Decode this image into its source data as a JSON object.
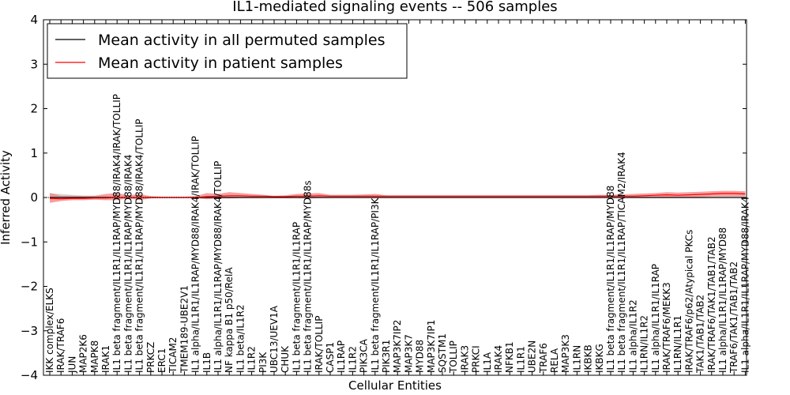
{
  "chart_data": {
    "type": "line",
    "title": "IL1-mediated signaling events -- 506 samples",
    "xlabel": "Cellular Entities",
    "ylabel": "Inferred Activity",
    "ylim": [
      -4,
      4
    ],
    "yticks": [
      "−4",
      "−3",
      "−2",
      "−1",
      "0",
      "1",
      "2",
      "3",
      "4"
    ],
    "grid": false,
    "legend_position": "top-left",
    "colors": {
      "permuted": "#000000",
      "patient": "#ff0000",
      "band": "#f08080",
      "band_gray": "#c8c8c8"
    },
    "categories": [
      "IKK complex/ELKS",
      "IRAK/TRAF6",
      "JUN",
      "MAP2K6",
      "MAPK8",
      "IRAK1",
      "IL1 beta fragment/IL1R1/IL1RAP/MYD88/IRAK4/IRAK/TOLLIP",
      "IL1 beta fragment/IL1R1/IL1RAP/MYD88/IRAK4",
      "IL1 beta fragment/IL1R1/IL1RAP/MYD88/IRAK4/TOLLIP",
      "PRKCZ",
      "ERC1",
      "TICAM2",
      "TMEM189-UBE2V1",
      "IL1 alpha/IL1R1/IL1RAP/MYD88/IRAK4/IRAK/TOLLIP",
      "IL1B",
      "IL1 alpha/IL1R1/IL1RAP/MYD88/IRAK4/TOLLIP",
      "NF kappa B1 p50/RelA",
      "IL1 beta/IL1R2",
      "IL1R2",
      "PI3K",
      "UBC13/UEV1A",
      "CHUK",
      "IL1 beta fragment/IL1R1/IL1RAP",
      "IL1 beta fragment/IL1R1/IL1RAP/MYD88s",
      "IRAK/TOLLIP",
      "CASP1",
      "IL1RAP",
      "IL1R2",
      "PIK3CA",
      "IL1 beta fragment/IL1R1/IL1RAP/PI3K",
      "PIK3R1",
      "MAP3K7IP2",
      "MAP3K7",
      "MYD88",
      "MAP3K7IP1",
      "SQSTM1",
      "TOLLIP",
      "IRAK3",
      "PRKCI",
      "IL1A",
      "IRAK4",
      "NFKB1",
      "IL1R1",
      "UBE2N",
      "TRAF6",
      "RELA",
      "MAP3K3",
      "IL1RN",
      "IKBKB",
      "IKBKG",
      "IL1 beta fragment/IL1R1/IL1RAP/MYD88",
      "IL1 beta fragment/IL1R1/IL1RAP/TICAM2/IRAK4",
      "IL1 alpha/IL1R2",
      "IL1RN/IL1R2",
      "IL1 alpha/IL1R1/IL1RAP",
      "IRAK/TRAF6/MEKK3",
      "IL1RN/IL1R1",
      "IRAK/TRAF6/p62/Atypical PKCs",
      "TAK1/TAB1/TAB2",
      "IRAK/TRAF6/TAK1/TAB1/TAB2",
      "IL1 alpha/IL1R1/IL1RAP/MYD88",
      "TRAF6/TAK1/TAB1/TAB2",
      "IL1 alpha/IL1R1/IL1RAP/MYD88/IRAK4"
    ],
    "series": [
      {
        "name": "Mean activity in all permuted samples",
        "values": [
          0.0,
          0.0,
          0.0,
          0.0,
          0.0,
          0.0,
          0.0,
          0.0,
          0.0,
          0.0,
          0.0,
          0.0,
          0.0,
          0.0,
          0.0,
          0.0,
          0.0,
          0.0,
          0.0,
          0.0,
          0.0,
          0.0,
          0.0,
          0.0,
          0.0,
          0.0,
          0.0,
          0.0,
          0.0,
          0.0,
          0.0,
          0.0,
          0.0,
          0.0,
          0.0,
          0.0,
          0.0,
          0.0,
          0.0,
          0.0,
          0.0,
          0.0,
          0.0,
          0.0,
          0.0,
          0.0,
          0.0,
          0.0,
          0.0,
          0.0,
          0.0,
          0.0,
          0.0,
          0.0,
          0.0,
          0.0,
          0.0,
          0.0,
          0.0,
          0.0,
          0.0,
          0.0,
          0.0
        ]
      },
      {
        "name": "Mean activity in patient samples",
        "values": [
          -0.02,
          -0.03,
          -0.02,
          -0.02,
          -0.01,
          -0.01,
          0.0,
          0.0,
          0.0,
          0.0,
          0.0,
          0.0,
          0.0,
          0.0,
          0.02,
          0.03,
          0.04,
          0.04,
          0.03,
          0.03,
          0.02,
          0.02,
          0.03,
          0.03,
          0.04,
          0.03,
          0.03,
          0.03,
          0.03,
          0.03,
          0.03,
          0.03,
          0.03,
          0.03,
          0.03,
          0.03,
          0.03,
          0.03,
          0.03,
          0.03,
          0.03,
          0.03,
          0.03,
          0.03,
          0.03,
          0.03,
          0.03,
          0.03,
          0.03,
          0.03,
          0.03,
          0.03,
          0.03,
          0.04,
          0.05,
          0.06,
          0.05,
          0.06,
          0.07,
          0.08,
          0.09,
          0.09,
          0.08
        ]
      }
    ],
    "patient_band": {
      "upper": [
        0.1,
        0.04,
        0.04,
        0.03,
        0.04,
        0.08,
        0.1,
        0.05,
        0.08,
        0.03,
        0.02,
        0.02,
        0.02,
        0.03,
        0.1,
        0.08,
        0.12,
        0.1,
        0.08,
        0.06,
        0.04,
        0.05,
        0.08,
        0.09,
        0.1,
        0.06,
        0.06,
        0.06,
        0.07,
        0.08,
        0.05,
        0.05,
        0.05,
        0.05,
        0.05,
        0.05,
        0.05,
        0.05,
        0.05,
        0.05,
        0.05,
        0.05,
        0.05,
        0.05,
        0.05,
        0.05,
        0.05,
        0.05,
        0.05,
        0.06,
        0.06,
        0.07,
        0.08,
        0.09,
        0.1,
        0.12,
        0.11,
        0.12,
        0.13,
        0.14,
        0.15,
        0.15,
        0.14
      ],
      "lower": [
        -0.12,
        -0.08,
        -0.06,
        -0.06,
        -0.05,
        -0.06,
        -0.06,
        -0.02,
        -0.06,
        -0.02,
        -0.01,
        -0.01,
        -0.01,
        -0.01,
        -0.04,
        -0.02,
        -0.02,
        -0.01,
        -0.01,
        -0.01,
        0.0,
        -0.01,
        -0.01,
        -0.02,
        -0.01,
        0.0,
        0.0,
        0.0,
        0.0,
        -0.01,
        0.0,
        0.0,
        0.0,
        0.0,
        0.0,
        0.0,
        0.0,
        0.0,
        0.0,
        0.0,
        0.0,
        0.0,
        0.0,
        0.0,
        0.0,
        0.0,
        0.0,
        0.0,
        0.0,
        0.0,
        0.0,
        -0.01,
        0.0,
        0.0,
        0.0,
        0.0,
        0.0,
        0.0,
        0.01,
        0.02,
        0.02,
        0.02,
        0.02
      ]
    },
    "permuted_band": {
      "upper": [
        0.1,
        0.08,
        0.06,
        0.05,
        0.04,
        0.03,
        0.02,
        0.01,
        0.01,
        0.0,
        0.0,
        0.0,
        0.0,
        0.0,
        0.0,
        0.0,
        0.0,
        0.0,
        0.0,
        0.0,
        0.0,
        0.0,
        0.0,
        0.0,
        0.0,
        0.0,
        0.0,
        0.0,
        0.0,
        0.0,
        0.0,
        0.0,
        0.0,
        0.0,
        0.0,
        0.0,
        0.0,
        0.0,
        0.0,
        0.0,
        0.0,
        0.0,
        0.0,
        0.0,
        0.0,
        0.0,
        0.0,
        0.0,
        0.0,
        0.0,
        0.0,
        0.0,
        0.0,
        0.0,
        0.0,
        0.0,
        0.0,
        0.0,
        0.0,
        0.0,
        0.0,
        0.0,
        0.0
      ],
      "lower": [
        -0.06,
        -0.05,
        -0.04,
        -0.03,
        -0.02,
        -0.02,
        -0.01,
        -0.01,
        0.0,
        0.0,
        0.0,
        0.0,
        0.0,
        0.0,
        0.0,
        0.0,
        0.0,
        0.0,
        0.0,
        0.0,
        0.0,
        0.0,
        0.0,
        0.0,
        0.0,
        0.0,
        0.0,
        0.0,
        0.0,
        0.0,
        0.0,
        0.0,
        0.0,
        0.0,
        0.0,
        0.0,
        0.0,
        0.0,
        0.0,
        0.0,
        0.0,
        0.0,
        0.0,
        0.0,
        0.0,
        0.0,
        0.0,
        0.0,
        0.0,
        0.0,
        0.0,
        0.0,
        0.0,
        0.0,
        0.0,
        0.0,
        0.0,
        0.0,
        0.0,
        0.0,
        0.0,
        0.0,
        0.0
      ]
    },
    "legend": [
      "Mean activity in all permuted samples",
      "Mean activity in patient samples"
    ]
  }
}
